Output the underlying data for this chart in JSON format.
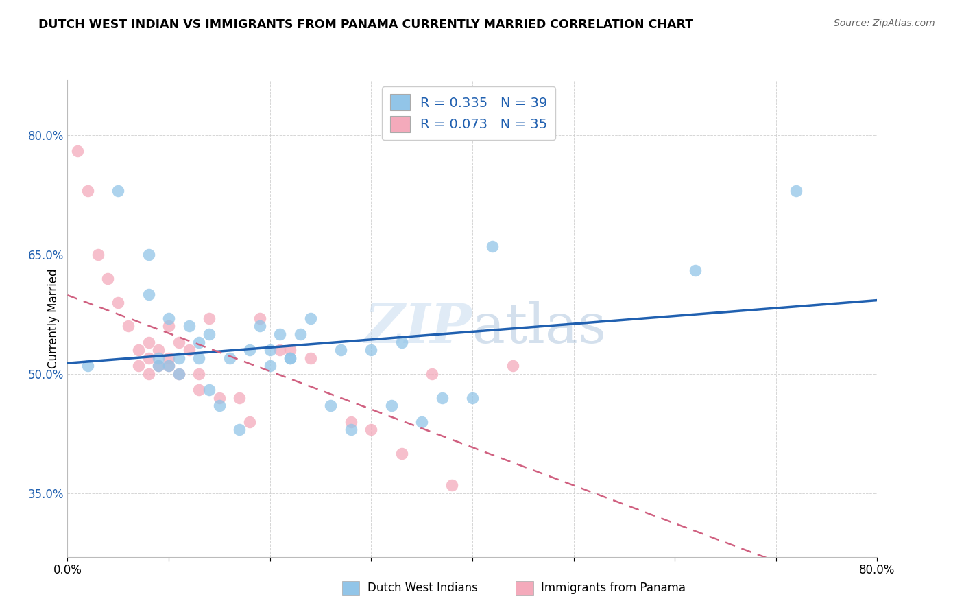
{
  "title": "DUTCH WEST INDIAN VS IMMIGRANTS FROM PANAMA CURRENTLY MARRIED CORRELATION CHART",
  "source": "Source: ZipAtlas.com",
  "ylabel": "Currently Married",
  "xmin": 0.0,
  "xmax": 0.8,
  "ymin": 0.27,
  "ymax": 0.87,
  "yticks": [
    0.35,
    0.5,
    0.65,
    0.8
  ],
  "ytick_labels": [
    "35.0%",
    "50.0%",
    "65.0%",
    "80.0%"
  ],
  "xticks": [
    0.0,
    0.1,
    0.2,
    0.3,
    0.4,
    0.5,
    0.6,
    0.7,
    0.8
  ],
  "xtick_labels": [
    "0.0%",
    "",
    "",
    "",
    "",
    "",
    "",
    "",
    "80.0%"
  ],
  "legend_labels": [
    "Dutch West Indians",
    "Immigrants from Panama"
  ],
  "R_blue": 0.335,
  "N_blue": 39,
  "R_pink": 0.073,
  "N_pink": 35,
  "blue_color": "#92C5E8",
  "pink_color": "#F4AABB",
  "trend_blue": "#2060B0",
  "trend_pink": "#D06080",
  "blue_scatter_x": [
    0.02,
    0.05,
    0.08,
    0.08,
    0.09,
    0.09,
    0.1,
    0.1,
    0.11,
    0.11,
    0.12,
    0.13,
    0.13,
    0.14,
    0.14,
    0.15,
    0.16,
    0.17,
    0.18,
    0.19,
    0.2,
    0.2,
    0.21,
    0.22,
    0.22,
    0.23,
    0.24,
    0.26,
    0.27,
    0.28,
    0.3,
    0.32,
    0.33,
    0.35,
    0.37,
    0.4,
    0.42,
    0.62,
    0.72
  ],
  "blue_scatter_y": [
    0.51,
    0.73,
    0.65,
    0.6,
    0.52,
    0.51,
    0.57,
    0.51,
    0.52,
    0.5,
    0.56,
    0.54,
    0.52,
    0.48,
    0.55,
    0.46,
    0.52,
    0.43,
    0.53,
    0.56,
    0.53,
    0.51,
    0.55,
    0.52,
    0.52,
    0.55,
    0.57,
    0.46,
    0.53,
    0.43,
    0.53,
    0.46,
    0.54,
    0.44,
    0.47,
    0.47,
    0.66,
    0.63,
    0.73
  ],
  "pink_scatter_x": [
    0.01,
    0.02,
    0.03,
    0.04,
    0.05,
    0.06,
    0.07,
    0.07,
    0.08,
    0.08,
    0.08,
    0.09,
    0.09,
    0.1,
    0.1,
    0.1,
    0.11,
    0.11,
    0.12,
    0.13,
    0.13,
    0.14,
    0.15,
    0.17,
    0.18,
    0.19,
    0.21,
    0.22,
    0.24,
    0.28,
    0.3,
    0.33,
    0.36,
    0.38,
    0.44
  ],
  "pink_scatter_y": [
    0.78,
    0.73,
    0.65,
    0.62,
    0.59,
    0.56,
    0.53,
    0.51,
    0.54,
    0.52,
    0.5,
    0.53,
    0.51,
    0.56,
    0.52,
    0.51,
    0.54,
    0.5,
    0.53,
    0.5,
    0.48,
    0.57,
    0.47,
    0.47,
    0.44,
    0.57,
    0.53,
    0.53,
    0.52,
    0.44,
    0.43,
    0.4,
    0.5,
    0.36,
    0.51
  ],
  "watermark_zip": "ZIP",
  "watermark_atlas": "atlas"
}
